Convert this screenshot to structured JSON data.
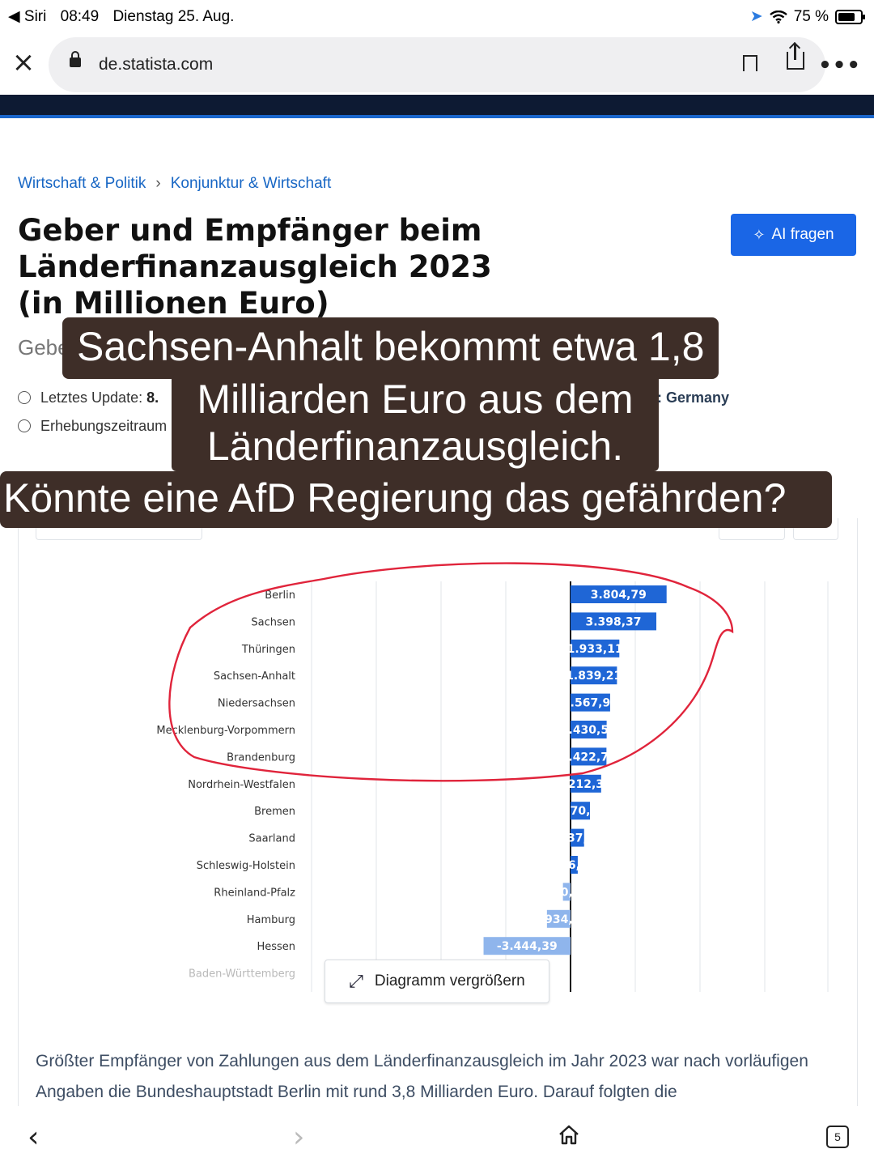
{
  "statusbar": {
    "back_app": "◀ Siri",
    "time": "08:49",
    "date": "Dienstag 25. Aug.",
    "battery": "75 %"
  },
  "browser": {
    "url": "de.statista.com",
    "open_tabs": "5"
  },
  "breadcrumb": {
    "item1": "Wirtschaft & Politik",
    "item2": "Konjunktur & Wirtschaft"
  },
  "page": {
    "title": "Geber und Empfänger beim Länderfinanzausgleich 2023 (in Millionen Euro)",
    "subtitle_fragment": "Gebe",
    "ai_button": "AI fragen",
    "last_update_label": "Letztes Update:",
    "last_update_value": "8.",
    "survey_period_label": "Erhebungszeitraum",
    "region_prefix": ":",
    "region_value": "Germany",
    "enlarge_button": "Diagramm vergrößern",
    "description": "Größter Empfänger von Zahlungen aus dem Länderfinanzausgleich im Jahr 2023 war nach vorläufigen Angaben die Bundeshauptstadt Berlin mit rund 3,8 Milliarden Euro. Darauf folgten die"
  },
  "caption": {
    "line1": "Sachsen-Anhalt bekommt etwa 1,8",
    "line2": "Milliarden Euro aus dem",
    "line3": "Länderfinanzausgleich.",
    "line4": "Könnte eine AfD Regierung das gefährden?"
  },
  "chart_data": {
    "type": "bar",
    "orientation": "horizontal",
    "categories": [
      "Berlin",
      "Sachsen",
      "Thüringen",
      "Sachsen-Anhalt",
      "Niedersachsen",
      "Mecklenburg-Vorpommern",
      "Brandenburg",
      "Nordrhein-Westfalen",
      "Bremen",
      "Saarland",
      "Schleswig-Holstein",
      "Rheinland-Pfalz",
      "Hamburg",
      "Hessen",
      "Baden-Württemberg"
    ],
    "values": [
      3804.79,
      3398.37,
      1933.11,
      1839.21,
      1567.9,
      1430.5,
      1422.7,
      1212.3,
      770,
      537,
      286,
      -300,
      -934,
      -3444.39,
      null
    ],
    "value_labels": [
      "3.804,79",
      "3.398,37",
      "1.933,11",
      "1.839,21",
      ".567,9",
      ".430,5",
      ".422,7",
      "212,3",
      "70,",
      "37,",
      "6,",
      "0,",
      "934,",
      "-3.444,39",
      ""
    ],
    "bar_color_positive": "#1f66d6",
    "bar_color_negative": "#8fb5ec",
    "xlim": [
      -10000,
      10000
    ],
    "grid": true,
    "legend": "none"
  },
  "annotation": {
    "circle_color": "#e0243b"
  }
}
